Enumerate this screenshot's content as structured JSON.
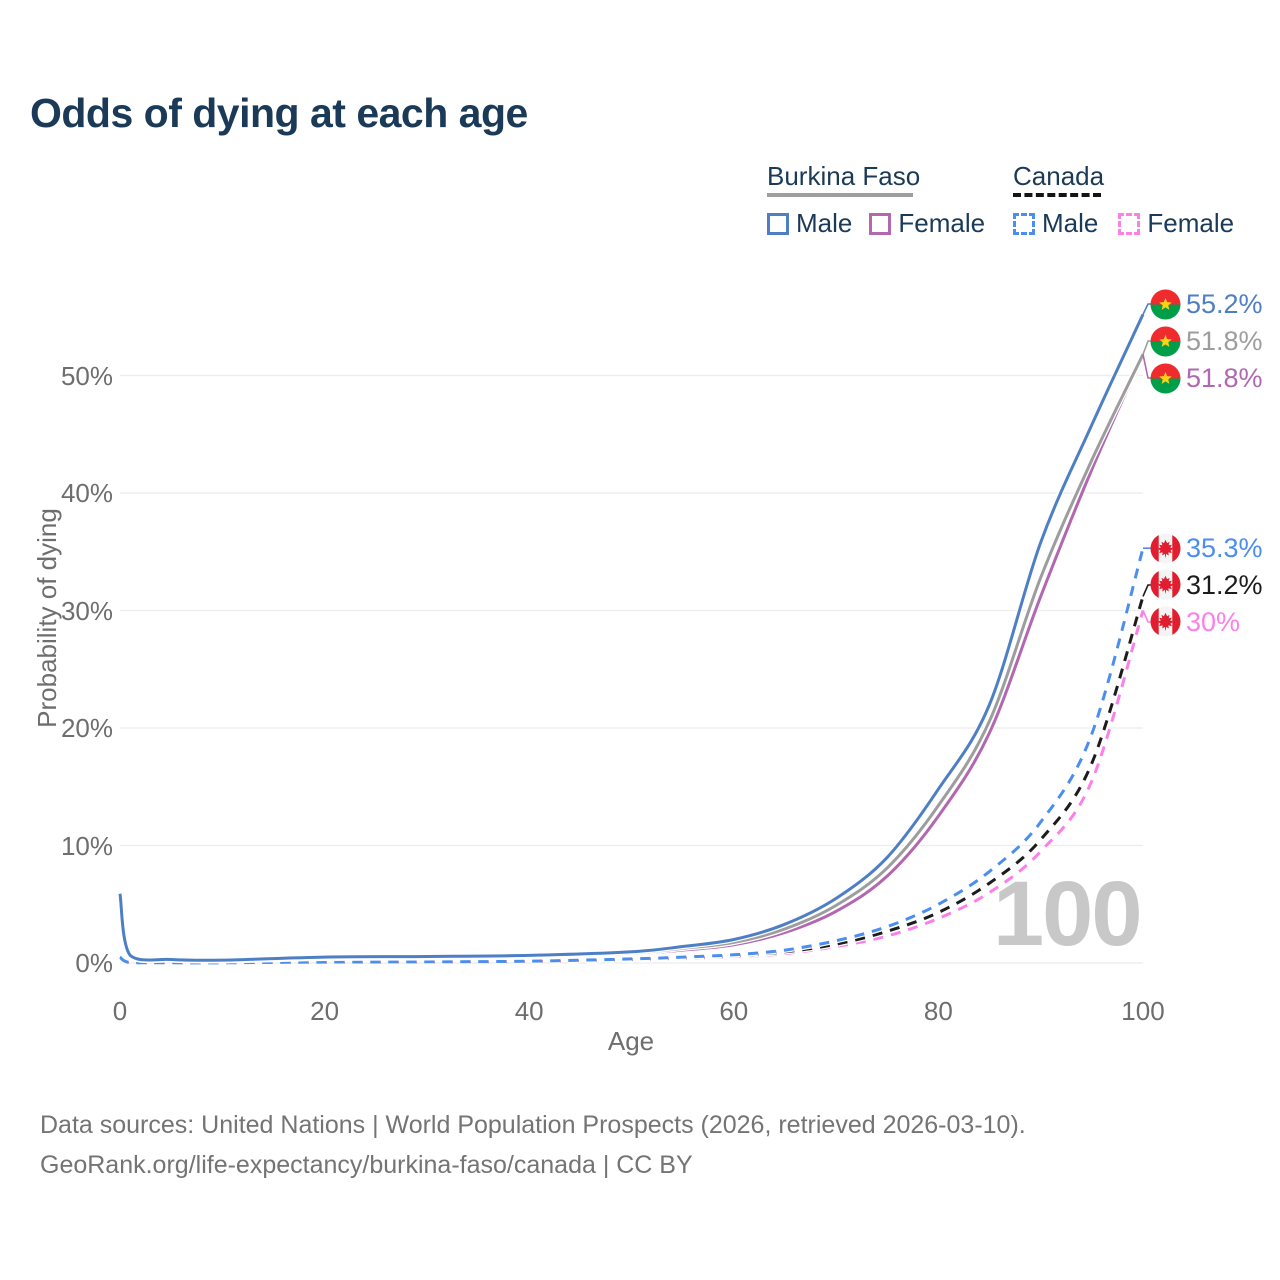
{
  "page": {
    "title": "Odds of dying at each age",
    "watermark": "100",
    "footer_line1": "Data sources: United Nations | World Population Prospects (2026, retrieved 2026-03-10).",
    "footer_line2": "GeoRank.org/life-expectancy/burkina-faso/canada | CC BY"
  },
  "legend": {
    "groups": [
      {
        "name": "Burkina Faso",
        "line_style": "solid",
        "line_color": "#9e9e9e",
        "items": [
          {
            "label": "Male",
            "color": "#4e7fc4",
            "style": "solid"
          },
          {
            "label": "Female",
            "color": "#b168b1",
            "style": "solid"
          }
        ]
      },
      {
        "name": "Canada",
        "line_style": "dashed",
        "line_color": "#141414",
        "items": [
          {
            "label": "Male",
            "color": "#4b8ef0",
            "style": "dashed"
          },
          {
            "label": "Female",
            "color": "#fb80e8",
            "style": "dashed"
          }
        ]
      }
    ]
  },
  "chart_data": {
    "type": "line",
    "title": "Odds of dying at each age",
    "xlabel": "Age",
    "ylabel": "Probability of dying",
    "xlim": [
      0,
      100
    ],
    "ylim": [
      0,
      57
    ],
    "grid": "horizontal",
    "xticks": {
      "values": [
        0,
        20,
        40,
        60,
        80,
        100
      ],
      "labels": [
        "0",
        "20",
        "40",
        "60",
        "80",
        "100"
      ]
    },
    "yticks": {
      "values": [
        0,
        10,
        20,
        30,
        40,
        50
      ],
      "labels": [
        "0%",
        "10%",
        "20%",
        "30%",
        "40%",
        "50%"
      ]
    },
    "ages": [
      0,
      1,
      5,
      10,
      20,
      30,
      40,
      50,
      55,
      60,
      65,
      70,
      75,
      80,
      85,
      90,
      95,
      100
    ],
    "series": [
      {
        "name": "Burkina Faso Male",
        "country": "Burkina Faso",
        "sex": "Male",
        "color": "#4e7fc4",
        "line": "solid",
        "flag": "burkina-faso",
        "end_label": "55.2%",
        "values": [
          5.9,
          0.65,
          0.3,
          0.25,
          0.5,
          0.55,
          0.65,
          0.95,
          1.4,
          2.0,
          3.3,
          5.5,
          9.0,
          14.8,
          22.0,
          35.8,
          45.8,
          55.2
        ]
      },
      {
        "name": "Burkina Faso Both sexes",
        "country": "Burkina Faso",
        "sex": "Both",
        "color": "#9d9d9d",
        "line": "solid",
        "flag": "burkina-faso",
        "end_label": "51.8%",
        "values": [
          5.55,
          0.6,
          0.28,
          0.22,
          0.45,
          0.5,
          0.6,
          0.85,
          1.25,
          1.75,
          2.9,
          4.9,
          8.1,
          13.4,
          20.6,
          32.8,
          42.8,
          51.8
        ]
      },
      {
        "name": "Burkina Faso Female",
        "country": "Burkina Faso",
        "sex": "Female",
        "color": "#b168b1",
        "line": "solid",
        "flag": "burkina-faso",
        "end_label": "51.8%",
        "values": [
          5.2,
          0.58,
          0.26,
          0.2,
          0.4,
          0.45,
          0.55,
          0.78,
          1.1,
          1.55,
          2.6,
          4.4,
          7.4,
          12.5,
          19.6,
          31.2,
          42.0,
          51.8
        ]
      },
      {
        "name": "Canada Male",
        "country": "Canada",
        "sex": "Male",
        "color": "#4b8ef0",
        "line": "dashed",
        "flag": "canada",
        "end_label": "35.3%",
        "values": [
          0.5,
          0.04,
          0.02,
          0.02,
          0.08,
          0.1,
          0.15,
          0.35,
          0.5,
          0.7,
          1.1,
          1.9,
          3.1,
          5.0,
          7.8,
          12.0,
          19.5,
          35.3
        ]
      },
      {
        "name": "Canada Both sexes",
        "country": "Canada",
        "sex": "Both",
        "color": "#1c1c1c",
        "line": "dashed",
        "flag": "canada",
        "end_label": "31.2%",
        "values": [
          0.45,
          0.035,
          0.02,
          0.02,
          0.06,
          0.08,
          0.13,
          0.3,
          0.42,
          0.6,
          0.95,
          1.6,
          2.7,
          4.3,
          6.8,
          10.5,
          17.0,
          31.2
        ]
      },
      {
        "name": "Canada Female",
        "country": "Canada",
        "sex": "Female",
        "color": "#fb80e8",
        "line": "dashed",
        "flag": "canada",
        "end_label": "30%",
        "values": [
          0.4,
          0.03,
          0.015,
          0.015,
          0.05,
          0.07,
          0.11,
          0.25,
          0.36,
          0.5,
          0.8,
          1.4,
          2.3,
          3.8,
          6.0,
          9.5,
          15.5,
          30.0
        ]
      }
    ]
  }
}
